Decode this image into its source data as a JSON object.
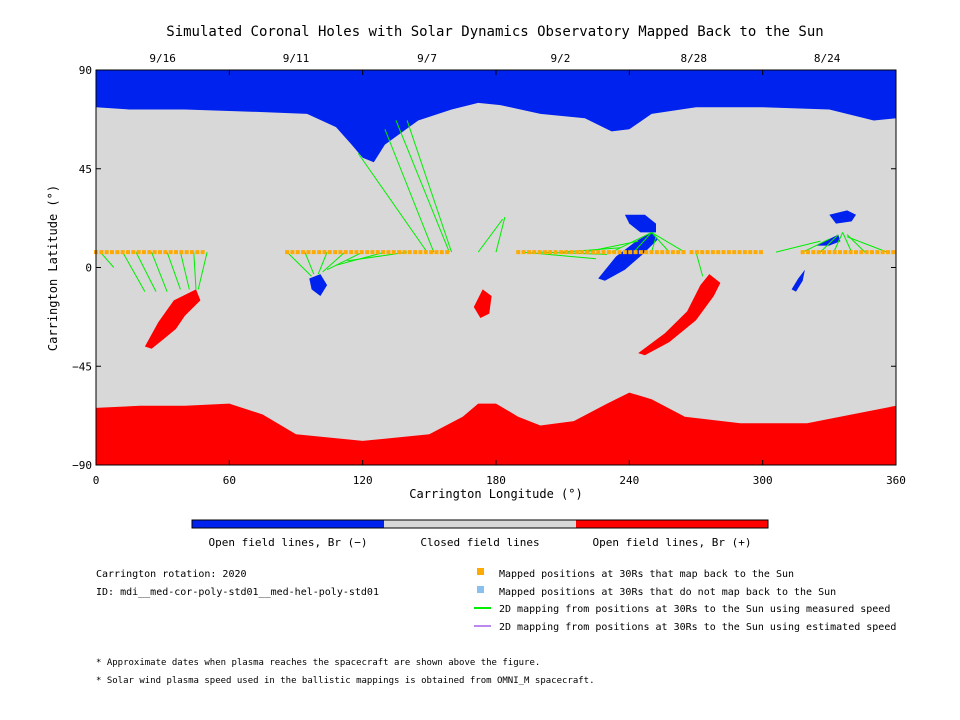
{
  "chart_data": {
    "type": "map",
    "title": "Simulated Coronal Holes with Solar Dynamics Observatory Mapped Back to the Sun",
    "xlabel": "Carrington Longitude (°)",
    "ylabel": "Carrington Latitude (°)",
    "xlim": [
      0,
      360
    ],
    "ylim": [
      -90,
      90
    ],
    "x_ticks": [
      0,
      60,
      120,
      180,
      240,
      300,
      360
    ],
    "y_ticks": [
      -90,
      -45,
      0,
      45,
      90
    ],
    "date_ticks": [
      {
        "label": "9/16",
        "lon": 30
      },
      {
        "label": "9/11",
        "lon": 90
      },
      {
        "label": "9/7",
        "lon": 149
      },
      {
        "label": "9/2",
        "lon": 209
      },
      {
        "label": "8/28",
        "lon": 269
      },
      {
        "label": "8/24",
        "lon": 329
      }
    ],
    "colors": {
      "open_negative": "#0022ee",
      "closed": "#d8d8d8",
      "open_positive": "#ff0000",
      "mapped": "#ffaa00",
      "unmapped": "#88c0f0",
      "measured_line": "#00ee00",
      "estimated_line": "#bb88ee"
    },
    "regions": {
      "north_cap": [
        [
          0,
          73
        ],
        [
          15,
          72
        ],
        [
          40,
          72
        ],
        [
          70,
          71
        ],
        [
          95,
          70
        ],
        [
          108,
          64
        ],
        [
          115,
          56
        ],
        [
          120,
          50
        ],
        [
          125,
          48
        ],
        [
          130,
          56
        ],
        [
          145,
          67
        ],
        [
          160,
          72
        ],
        [
          172,
          75
        ],
        [
          182,
          74
        ],
        [
          200,
          70
        ],
        [
          220,
          68
        ],
        [
          232,
          62
        ],
        [
          240,
          63
        ],
        [
          250,
          70
        ],
        [
          270,
          73
        ],
        [
          300,
          73
        ],
        [
          330,
          72
        ],
        [
          350,
          67
        ],
        [
          360,
          68
        ]
      ],
      "south_cap": [
        [
          0,
          -64
        ],
        [
          20,
          -63
        ],
        [
          40,
          -63
        ],
        [
          60,
          -62
        ],
        [
          75,
          -67
        ],
        [
          90,
          -76
        ],
        [
          120,
          -79
        ],
        [
          150,
          -76
        ],
        [
          165,
          -68
        ],
        [
          172,
          -62
        ],
        [
          180,
          -62
        ],
        [
          190,
          -68
        ],
        [
          200,
          -72
        ],
        [
          215,
          -70
        ],
        [
          230,
          -62
        ],
        [
          240,
          -57
        ],
        [
          250,
          -60
        ],
        [
          265,
          -68
        ],
        [
          290,
          -71
        ],
        [
          320,
          -71
        ],
        [
          340,
          -67
        ],
        [
          360,
          -63
        ]
      ],
      "neg_holes": [
        [
          [
            226,
            -5
          ],
          [
            234,
            5
          ],
          [
            243,
            12
          ],
          [
            250,
            16
          ],
          [
            253,
            13
          ],
          [
            246,
            6
          ],
          [
            238,
            -1
          ],
          [
            229,
            -6
          ]
        ],
        [
          [
            238,
            24
          ],
          [
            247,
            24
          ],
          [
            252,
            20
          ],
          [
            252,
            16
          ],
          [
            245,
            16
          ],
          [
            240,
            20
          ]
        ],
        [
          [
            96,
            -5
          ],
          [
            101,
            -3
          ],
          [
            104,
            -8
          ],
          [
            101,
            -13
          ],
          [
            97,
            -10
          ]
        ],
        [
          [
            313,
            -10
          ],
          [
            316,
            -5
          ],
          [
            319,
            -1
          ],
          [
            318,
            -6
          ],
          [
            315,
            -11
          ]
        ],
        [
          [
            324,
            10
          ],
          [
            330,
            13
          ],
          [
            334,
            15
          ],
          [
            335,
            12
          ],
          [
            330,
            10
          ]
        ],
        [
          [
            330,
            24
          ],
          [
            338,
            26
          ],
          [
            342,
            24
          ],
          [
            340,
            21
          ],
          [
            333,
            20
          ]
        ]
      ],
      "pos_holes": [
        [
          [
            22,
            -36
          ],
          [
            28,
            -25
          ],
          [
            35,
            -15
          ],
          [
            45,
            -10
          ],
          [
            47,
            -15
          ],
          [
            40,
            -22
          ],
          [
            36,
            -28
          ],
          [
            30,
            -33
          ],
          [
            25,
            -37
          ]
        ],
        [
          [
            170,
            -18
          ],
          [
            174,
            -10
          ],
          [
            178,
            -13
          ],
          [
            177,
            -21
          ],
          [
            173,
            -23
          ]
        ],
        [
          [
            244,
            -39
          ],
          [
            256,
            -30
          ],
          [
            266,
            -20
          ],
          [
            272,
            -8
          ],
          [
            276,
            -3
          ],
          [
            281,
            -7
          ],
          [
            278,
            -13
          ],
          [
            270,
            -24
          ],
          [
            258,
            -34
          ],
          [
            247,
            -40
          ]
        ]
      ]
    },
    "mapped_segments": [
      {
        "orange": [
          [
            0,
            7
          ],
          [
            50,
            7
          ]
        ],
        "targets": [
          [
            18,
            -10
          ],
          [
            22,
            -11
          ],
          [
            27,
            -11
          ],
          [
            32,
            -11
          ],
          [
            38,
            -10
          ],
          [
            44,
            -10
          ]
        ]
      },
      {
        "orange": [
          [
            86,
            7
          ],
          [
            160,
            7
          ]
        ],
        "targets": [
          [
            97,
            -4
          ],
          [
            100,
            -3
          ],
          [
            104,
            -1
          ],
          [
            112,
            1
          ],
          [
            120,
            3
          ]
        ]
      },
      {
        "orange": [
          [
            190,
            7
          ],
          [
            265,
            7
          ]
        ],
        "targets": [
          [
            228,
            -3
          ],
          [
            234,
            4
          ],
          [
            244,
            12
          ],
          [
            250,
            16
          ]
        ]
      },
      {
        "orange": [
          [
            268,
            7
          ],
          [
            300,
            7
          ]
        ],
        "targets": [
          [
            272,
            -4
          ]
        ]
      },
      {
        "orange": [
          [
            318,
            7
          ],
          [
            360,
            7
          ]
        ],
        "targets": [
          [
            326,
            10
          ],
          [
            332,
            14
          ],
          [
            336,
            16
          ]
        ]
      }
    ],
    "lines": [
      [
        [
          2,
          7
        ],
        [
          8,
          0
        ]
      ],
      [
        [
          12,
          7
        ],
        [
          22,
          -11
        ]
      ],
      [
        [
          18,
          7
        ],
        [
          27,
          -11
        ]
      ],
      [
        [
          25,
          7
        ],
        [
          32,
          -11
        ]
      ],
      [
        [
          32,
          7
        ],
        [
          38,
          -10
        ]
      ],
      [
        [
          38,
          7
        ],
        [
          42,
          -10
        ]
      ],
      [
        [
          44,
          7
        ],
        [
          45,
          -10
        ]
      ],
      [
        [
          50,
          7
        ],
        [
          46,
          -10
        ]
      ],
      [
        [
          86,
          7
        ],
        [
          97,
          -4
        ]
      ],
      [
        [
          94,
          7
        ],
        [
          98,
          -3
        ]
      ],
      [
        [
          104,
          7
        ],
        [
          100,
          -3
        ]
      ],
      [
        [
          112,
          7
        ],
        [
          102,
          -2
        ]
      ],
      [
        [
          120,
          7
        ],
        [
          104,
          -1
        ]
      ],
      [
        [
          130,
          7
        ],
        [
          108,
          1
        ]
      ],
      [
        [
          140,
          7
        ],
        [
          113,
          3
        ]
      ],
      [
        [
          118,
          52
        ],
        [
          149,
          7
        ]
      ],
      [
        [
          130,
          63
        ],
        [
          152,
          7
        ]
      ],
      [
        [
          135,
          67
        ],
        [
          159,
          7
        ]
      ],
      [
        [
          140,
          67
        ],
        [
          160,
          7
        ]
      ],
      [
        [
          172,
          7
        ],
        [
          183,
          22
        ]
      ],
      [
        [
          180,
          7
        ],
        [
          184,
          23
        ]
      ],
      [
        [
          192,
          7
        ],
        [
          225,
          4
        ]
      ],
      [
        [
          200,
          7
        ],
        [
          230,
          6
        ]
      ],
      [
        [
          210,
          7
        ],
        [
          236,
          9
        ]
      ],
      [
        [
          220,
          7
        ],
        [
          244,
          12
        ]
      ],
      [
        [
          232,
          7
        ],
        [
          250,
          16
        ]
      ],
      [
        [
          242,
          7
        ],
        [
          250,
          16
        ]
      ],
      [
        [
          250,
          7
        ],
        [
          252,
          14
        ]
      ],
      [
        [
          258,
          7
        ],
        [
          250,
          16
        ]
      ],
      [
        [
          265,
          7
        ],
        [
          250,
          16
        ]
      ],
      [
        [
          270,
          7
        ],
        [
          273,
          -4
        ]
      ],
      [
        [
          306,
          7
        ],
        [
          326,
          12
        ]
      ],
      [
        [
          318,
          7
        ],
        [
          330,
          13
        ]
      ],
      [
        [
          326,
          7
        ],
        [
          334,
          15
        ]
      ],
      [
        [
          332,
          7
        ],
        [
          336,
          16
        ]
      ],
      [
        [
          340,
          7
        ],
        [
          336,
          16
        ]
      ],
      [
        [
          346,
          7
        ],
        [
          338,
          15
        ]
      ],
      [
        [
          356,
          7
        ],
        [
          338,
          14
        ]
      ]
    ]
  },
  "colorbar": {
    "labels": [
      "Open field lines, Br (−)",
      "Closed field lines",
      "Open field lines, Br (+)"
    ]
  },
  "info": {
    "rotation": "Carrington rotation: 2020",
    "id": "ID: mdi__med-cor-poly-std01__med-hel-poly-std01"
  },
  "legend": [
    {
      "label": "Mapped positions at 30Rs that map back to the Sun",
      "symbol": "square",
      "color": "#ffaa00"
    },
    {
      "label": "Mapped positions at 30Rs that do not map back to the Sun",
      "symbol": "square",
      "color": "#88c0f0"
    },
    {
      "label": "2D mapping from positions at 30Rs to the Sun using measured speed",
      "symbol": "line",
      "color": "#00ee00"
    },
    {
      "label": "2D mapping from positions at 30Rs to the Sun using estimated speed",
      "symbol": "line",
      "color": "#bb88ee"
    }
  ],
  "footnotes": [
    "* Approximate dates when plasma reaches the spacecraft are shown above the figure.",
    "* Solar wind plasma speed used in the ballistic mappings is obtained from OMNI_M spacecraft."
  ]
}
